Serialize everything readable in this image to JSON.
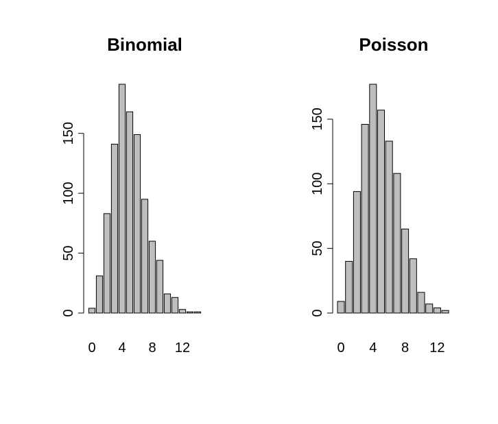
{
  "chart_data": [
    {
      "type": "bar",
      "title": "Binomial",
      "categories": [
        "0",
        null,
        null,
        null,
        "4",
        null,
        null,
        null,
        "8",
        null,
        null,
        null,
        "12",
        null,
        null
      ],
      "values": [
        4,
        31,
        83,
        141,
        191,
        168,
        149,
        95,
        60,
        44,
        16,
        13,
        3,
        1,
        1
      ],
      "color": "#bebebe",
      "ylim": [
        0,
        191
      ],
      "yticks": [
        0,
        50,
        100,
        150
      ]
    },
    {
      "type": "bar",
      "title": "Poisson",
      "categories": [
        "0",
        null,
        null,
        null,
        "4",
        null,
        null,
        null,
        "8",
        null,
        null,
        null,
        "12",
        null
      ],
      "values": [
        9,
        40,
        94,
        146,
        177,
        157,
        133,
        108,
        65,
        42,
        16,
        7,
        4,
        2
      ],
      "color": "#bebebe",
      "ylim": [
        0,
        177
      ],
      "yticks": [
        0,
        50,
        100,
        150
      ]
    }
  ]
}
